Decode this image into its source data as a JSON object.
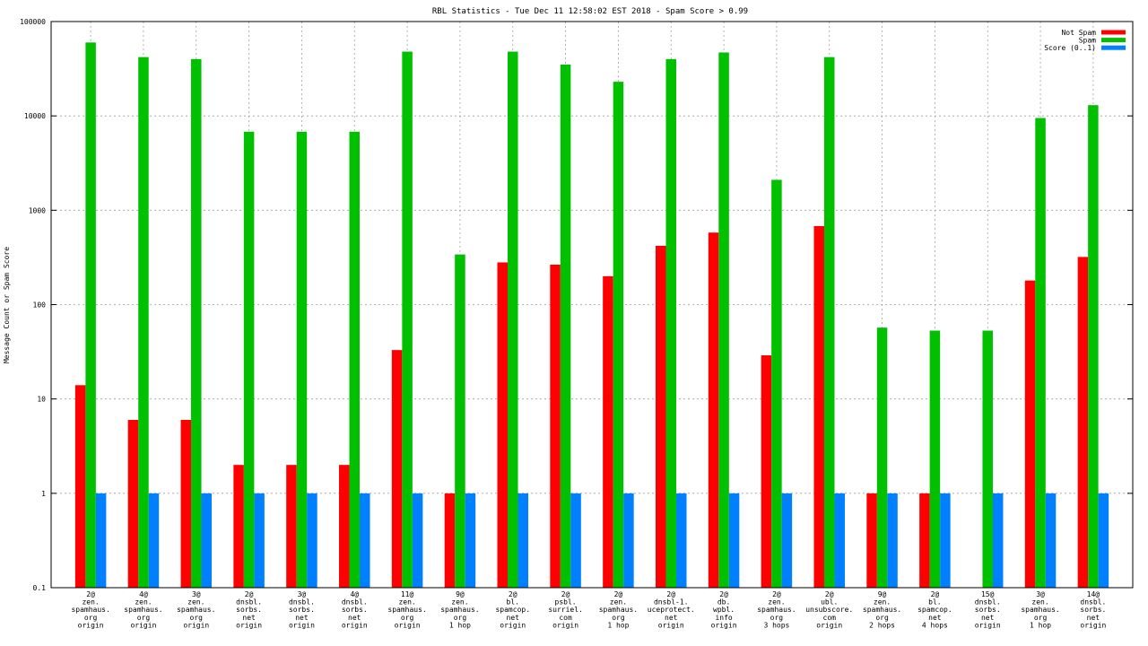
{
  "chart_data": {
    "type": "bar",
    "title": "RBL Statistics - Tue Dec 11 12:58:02 EST 2018 - Spam Score > 0.99",
    "ylabel": "Message Count or Spam Score",
    "xlabel": "",
    "yscale": "log",
    "ylim": [
      0.1,
      100000
    ],
    "y_ticks": [
      0.1,
      1,
      10,
      100,
      1000,
      10000,
      100000
    ],
    "y_tick_labels": [
      "0.1",
      "1",
      "10",
      "100",
      "1000",
      "10000",
      "100000"
    ],
    "grid": true,
    "legend_position": "top-right",
    "categories": [
      [
        "2@",
        "zen.",
        "spamhaus.",
        "org",
        "origin"
      ],
      [
        "4@",
        "zen.",
        "spamhaus.",
        "org",
        "origin"
      ],
      [
        "3@",
        "zen.",
        "spamhaus.",
        "org",
        "origin"
      ],
      [
        "2@",
        "dnsbl.",
        "sorbs.",
        "net",
        "origin"
      ],
      [
        "3@",
        "dnsbl.",
        "sorbs.",
        "net",
        "origin"
      ],
      [
        "4@",
        "dnsbl.",
        "sorbs.",
        "net",
        "origin"
      ],
      [
        "11@",
        "zen.",
        "spamhaus.",
        "org",
        "origin"
      ],
      [
        "9@",
        "zen.",
        "spamhaus.",
        "org",
        "1 hop"
      ],
      [
        "2@",
        "bl.",
        "spamcop.",
        "net",
        "origin"
      ],
      [
        "2@",
        "psbl.",
        "surriel.",
        "com",
        "origin"
      ],
      [
        "2@",
        "zen.",
        "spamhaus.",
        "org",
        "1 hop"
      ],
      [
        "2@",
        "dnsbl-1.",
        "uceprotect.",
        "net",
        "origin"
      ],
      [
        "2@",
        "db.",
        "wpbl.",
        "info",
        "origin"
      ],
      [
        "2@",
        "zen.",
        "spamhaus.",
        "org",
        "3 hops"
      ],
      [
        "2@",
        "ubl.",
        "unsubscore.",
        "com",
        "origin"
      ],
      [
        "9@",
        "zen.",
        "spamhaus.",
        "org",
        "2 hops"
      ],
      [
        "2@",
        "bl.",
        "spamcop.",
        "net",
        "4 hops"
      ],
      [
        "15@",
        "dnsbl.",
        "sorbs.",
        "net",
        "origin"
      ],
      [
        "3@",
        "zen.",
        "spamhaus.",
        "org",
        "1 hop"
      ],
      [
        "14@",
        "dnsbl.",
        "sorbs.",
        "net",
        "origin"
      ]
    ],
    "series": [
      {
        "name": "Not Spam",
        "color": "#ff0000",
        "values": [
          14,
          6,
          6,
          2,
          2,
          2,
          33,
          1,
          280,
          265,
          200,
          420,
          580,
          29,
          680,
          1,
          1,
          null,
          180,
          320
        ]
      },
      {
        "name": "Spam",
        "color": "#00c000",
        "values": [
          60000,
          42000,
          40000,
          6800,
          6800,
          6800,
          48000,
          340,
          48000,
          35000,
          23000,
          40000,
          47000,
          2100,
          42000,
          57,
          53,
          53,
          9500,
          13000
        ]
      },
      {
        "name": "Score (0..1)",
        "color": "#0080ff",
        "values": [
          1,
          1,
          1,
          1,
          1,
          1,
          1,
          1,
          1,
          1,
          1,
          1,
          1,
          1,
          1,
          1,
          1,
          1,
          1,
          1
        ]
      }
    ]
  }
}
